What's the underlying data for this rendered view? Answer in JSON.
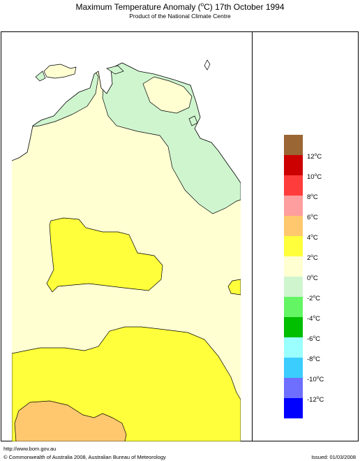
{
  "header": {
    "title_prefix": "Maximum Temperature Anomaly (",
    "title_degree": "o",
    "title_suffix": "C)  17th October 1994",
    "subtitle": "Product of the National Climate Centre"
  },
  "legend": {
    "colors": [
      "#9a6633",
      "#cc0000",
      "#ff3c3c",
      "#ff9e9e",
      "#ffc86e",
      "#ffff3c",
      "#ffffd2",
      "#cff5cf",
      "#63f563",
      "#00be00",
      "#9bffff",
      "#3ccdff",
      "#6e6eff",
      "#0000ff"
    ],
    "labels": [
      {
        "value": "12",
        "unit": "C"
      },
      {
        "value": "10",
        "unit": "C"
      },
      {
        "value": "8",
        "unit": "C"
      },
      {
        "value": "6",
        "unit": "C"
      },
      {
        "value": "4",
        "unit": "C"
      },
      {
        "value": "2",
        "unit": "C"
      },
      {
        "value": "0",
        "unit": "C"
      },
      {
        "value": "-2",
        "unit": "C"
      },
      {
        "value": "-4",
        "unit": "C"
      },
      {
        "value": "-6",
        "unit": "C"
      },
      {
        "value": "-8",
        "unit": "C"
      },
      {
        "value": "-10",
        "unit": "C"
      },
      {
        "value": "-12",
        "unit": "C"
      }
    ],
    "degree_mark": "o"
  },
  "map_colors": {
    "ocean": "#ffffff",
    "anomaly_0_to_2": "#ffffd2",
    "anomaly_neg2_to_0": "#cff5cf",
    "anomaly_2_to_4": "#ffff3c",
    "anomaly_4_to_6": "#ffc86e"
  },
  "footer": {
    "url": "http://www.bom.gov.au",
    "copyright": "© Commonwealth of Australia 2008, Australian Bureau of Meteorology",
    "issued": "Issued: 01/03/2008"
  }
}
